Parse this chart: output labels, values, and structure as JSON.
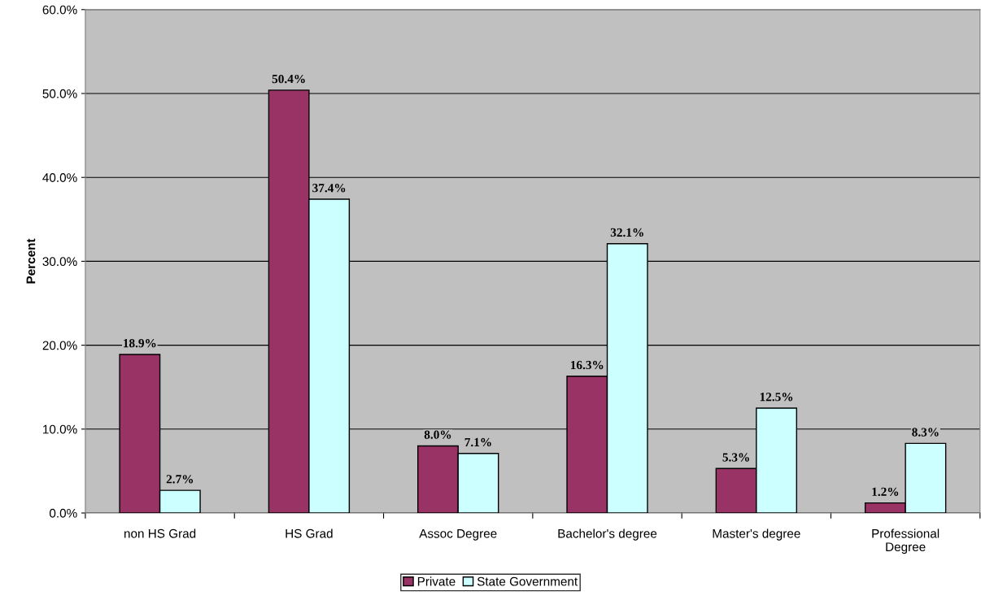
{
  "chart_data": {
    "type": "bar",
    "ylabel": "Percent",
    "categories": [
      "non HS Grad",
      "HS Grad",
      "Assoc Degree",
      "Bachelor's degree",
      "Master's degree",
      "Professional\nDegree"
    ],
    "series": [
      {
        "name": "Private",
        "color": "#993366",
        "values": [
          18.9,
          50.4,
          8.0,
          16.3,
          5.3,
          1.2
        ],
        "value_labels": [
          "18.9%",
          "50.4%",
          "8.0%",
          "16.3%",
          "5.3%",
          "1.2%"
        ]
      },
      {
        "name": "State Government",
        "color": "#ccffff",
        "values": [
          2.7,
          37.4,
          7.1,
          32.1,
          12.5,
          8.3
        ],
        "value_labels": [
          "2.7%",
          "37.4%",
          "7.1%",
          "32.1%",
          "12.5%",
          "8.3%"
        ]
      }
    ],
    "ylim": [
      0,
      60
    ],
    "yticks": [
      {
        "value": 0,
        "label": "0.0%"
      },
      {
        "value": 10,
        "label": "10.0%"
      },
      {
        "value": 20,
        "label": "20.0%"
      },
      {
        "value": 30,
        "label": "30.0%"
      },
      {
        "value": 40,
        "label": "40.0%"
      },
      {
        "value": 50,
        "label": "50.0%"
      },
      {
        "value": 60,
        "label": "60.0%"
      }
    ],
    "grid": "y",
    "legend": "bottom"
  }
}
